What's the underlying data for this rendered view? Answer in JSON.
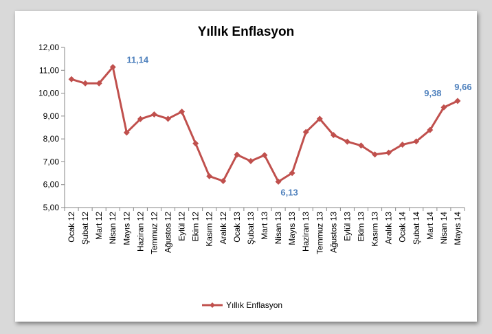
{
  "chart_data": {
    "type": "line",
    "title": "Yıllık Enflasyon",
    "xlabel": "",
    "ylabel": "",
    "ylim": [
      5,
      12
    ],
    "yticks": [
      "5,00",
      "6,00",
      "7,00",
      "8,00",
      "9,00",
      "10,00",
      "11,00",
      "12,00"
    ],
    "grid": false,
    "legend_position": "bottom",
    "categories": [
      "Ocak 12",
      "Şubat 12",
      "Mart 12",
      "Nisan 12",
      "Mayıs 12",
      "Haziran 12",
      "Temmuz 12",
      "Ağustos 12",
      "Eylül 12",
      "Ekim 12",
      "Kasım 12",
      "Aralık 12",
      "Ocak 13",
      "Şubat 13",
      "Mart 13",
      "Nisan 13",
      "Mayıs 13",
      "Haziran 13",
      "Temmuz 13",
      "Ağustos 13",
      "Eylül 13",
      "Ekim 13",
      "Kasım 13",
      "Aralık 13",
      "Ocak 14",
      "Şubat 14",
      "Mart 14",
      "Nisan 14",
      "Mayıs 14"
    ],
    "series": [
      {
        "name": "Yıllık Enflasyon",
        "color": "#c0504d",
        "values": [
          10.61,
          10.43,
          10.43,
          11.14,
          8.28,
          8.87,
          9.07,
          8.88,
          9.19,
          7.8,
          6.37,
          6.16,
          7.31,
          7.03,
          7.29,
          6.13,
          6.51,
          8.3,
          8.88,
          8.17,
          7.88,
          7.71,
          7.32,
          7.4,
          7.75,
          7.89,
          8.39,
          9.38,
          9.66
        ]
      }
    ],
    "annotations": [
      {
        "index": 3,
        "text": "11,14",
        "color": "#4f81bd"
      },
      {
        "index": 15,
        "text": "6,13",
        "color": "#4f81bd"
      },
      {
        "index": 27,
        "text": "9,38",
        "color": "#4f81bd"
      },
      {
        "index": 28,
        "text": "9,66",
        "color": "#4f81bd"
      }
    ]
  }
}
